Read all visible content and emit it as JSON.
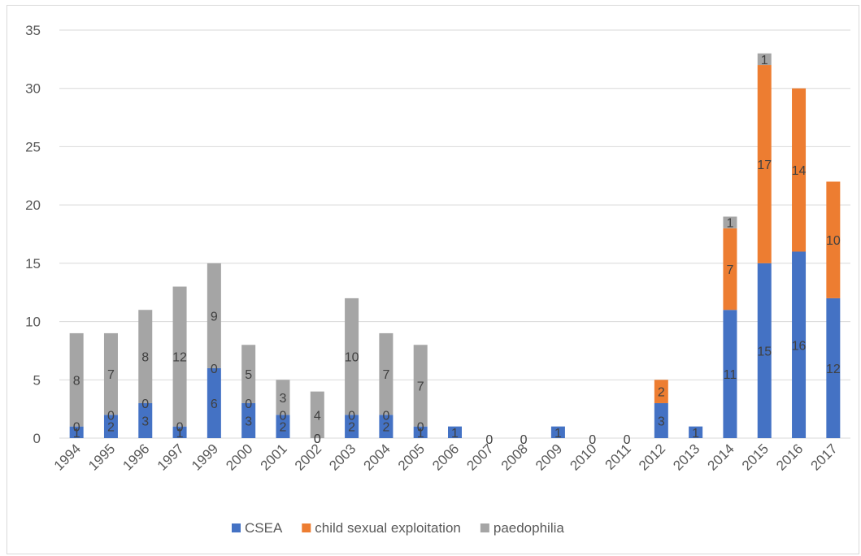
{
  "chart_data": {
    "type": "bar",
    "stacked": true,
    "categories": [
      "1994",
      "1995",
      "1996",
      "1997",
      "1999",
      "2000",
      "2001",
      "2002",
      "2003",
      "2004",
      "2005",
      "2006",
      "2007",
      "2008",
      "2009",
      "2010",
      "2011",
      "2012",
      "2013",
      "2014",
      "2015",
      "2016",
      "2017"
    ],
    "series": [
      {
        "name": "CSEA",
        "color": "#4472c4",
        "values": [
          1,
          2,
          3,
          1,
          6,
          3,
          2,
          0,
          2,
          2,
          1,
          1,
          0,
          0,
          1,
          0,
          0,
          3,
          1,
          11,
          15,
          16,
          12
        ]
      },
      {
        "name": "child sexual exploitation",
        "color": "#ed7d31",
        "values": [
          0,
          0,
          0,
          0,
          0,
          0,
          0,
          0,
          0,
          0,
          0,
          0,
          0,
          0,
          0,
          0,
          0,
          2,
          0,
          7,
          17,
          14,
          10
        ]
      },
      {
        "name": "paedophilia",
        "color": "#a5a5a5",
        "values": [
          8,
          7,
          8,
          12,
          9,
          5,
          3,
          4,
          10,
          7,
          7,
          0,
          0,
          0,
          0,
          0,
          0,
          0,
          0,
          1,
          1,
          0,
          0
        ]
      }
    ],
    "ylim": [
      0,
      35
    ],
    "yticks": [
      "0",
      "5",
      "10",
      "15",
      "20",
      "25",
      "30",
      "35"
    ],
    "grid": true,
    "legend_position": "bottom",
    "title": "",
    "xlabel": "",
    "ylabel": ""
  }
}
